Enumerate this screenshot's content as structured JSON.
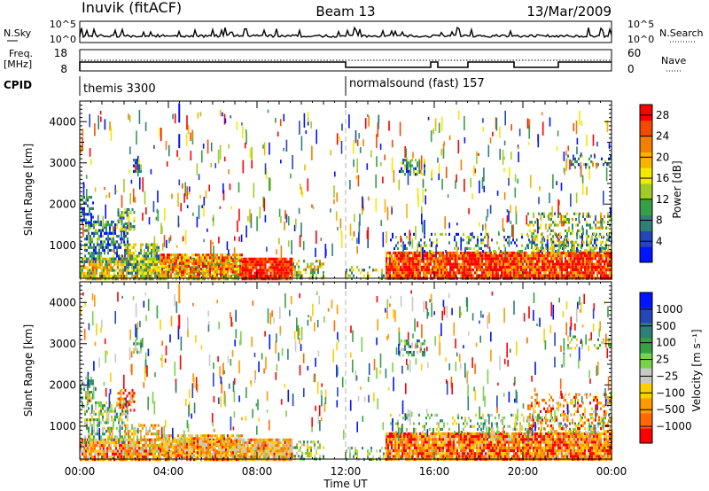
{
  "header": {
    "station": "Inuvik (fitACF)",
    "beam": "Beam 13",
    "date": "13/Mar/2009"
  },
  "strip": {
    "nsky_label": "N.Sky",
    "nsearch_label": "N.Search",
    "left_ticks": [
      "10^5",
      "10^0"
    ],
    "right_ticks": [
      "10^5",
      "10^0"
    ],
    "freq_label_top": "Freq.",
    "freq_label_unit": "[MHz]",
    "freq_ticks": [
      "18",
      "8"
    ],
    "nave_label": "Nave",
    "nave_ticks": [
      "60",
      "0"
    ],
    "cpid_label": "CPID",
    "cpid_1": "themis 3300",
    "cpid_2": "normalsound (fast) 157"
  },
  "colors": {
    "power_scale": [
      "#0014ff",
      "#2546b8",
      "#2f7f79",
      "#36a046",
      "#9fcc26",
      "#f2ea00",
      "#f6b400",
      "#f57f00",
      "#f44a00",
      "#ff0000"
    ],
    "velocity_scale": [
      "#ff0000",
      "#ff6a00",
      "#ff9a00",
      "#ffcf00",
      "#c8c8c8",
      "#7ad14a",
      "#36a046",
      "#2f7f79",
      "#2546b8",
      "#0014ff"
    ]
  },
  "chart_data": [
    {
      "type": "heatmap",
      "title": "Power",
      "xlabel": "",
      "ylabel": "Slant Range [km]",
      "x_ticks": [
        "00:00",
        "04:00",
        "08:00",
        "12:00",
        "16:00",
        "20:00",
        "00:00"
      ],
      "y_ticks": [
        "1000",
        "2000",
        "3000",
        "4000"
      ],
      "ylim": [
        200,
        4500
      ],
      "xlim_hours": [
        0,
        24
      ],
      "colorbar": {
        "label": "Power [dB]",
        "ticks": [
          "28",
          "24",
          "20",
          "16",
          "12",
          "8",
          "4"
        ],
        "range": [
          0,
          30
        ]
      }
    },
    {
      "type": "heatmap",
      "title": "Velocity",
      "xlabel": "Time UT",
      "ylabel": "Slant Range [km]",
      "x_ticks": [
        "00:00",
        "04:00",
        "08:00",
        "12:00",
        "16:00",
        "20:00",
        "00:00"
      ],
      "y_ticks": [
        "1000",
        "2000",
        "3000",
        "4000"
      ],
      "ylim": [
        200,
        4500
      ],
      "xlim_hours": [
        0,
        24
      ],
      "colorbar": {
        "label": "Velocity [m s⁻¹]",
        "ticks": [
          "1000",
          "500",
          "100",
          "25",
          "−25",
          "−100",
          "−500",
          "−1000"
        ]
      }
    }
  ]
}
